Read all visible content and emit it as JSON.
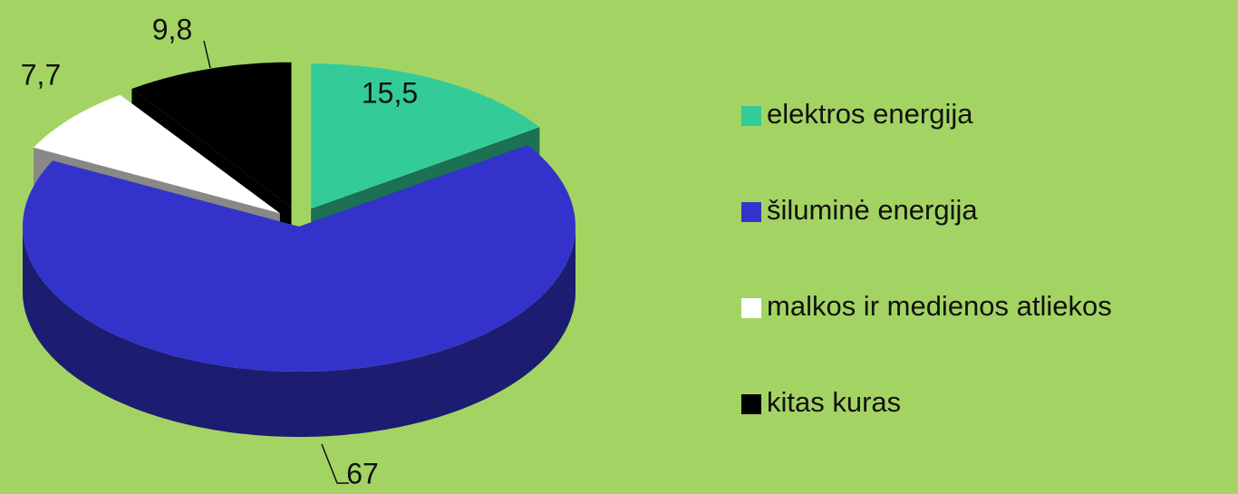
{
  "chart_data": {
    "type": "pie",
    "categories": [
      "elektros energija",
      "šiluminė energija",
      "malkos ir medienos atliekos",
      "kitas kuras"
    ],
    "values": [
      15.5,
      67,
      7.7,
      9.8
    ],
    "value_labels": [
      "15,5",
      "67",
      "7,7",
      "9,8"
    ],
    "colors": [
      "#33cc99",
      "#3333cc",
      "#ffffff",
      "#000000"
    ],
    "legend": "right"
  }
}
